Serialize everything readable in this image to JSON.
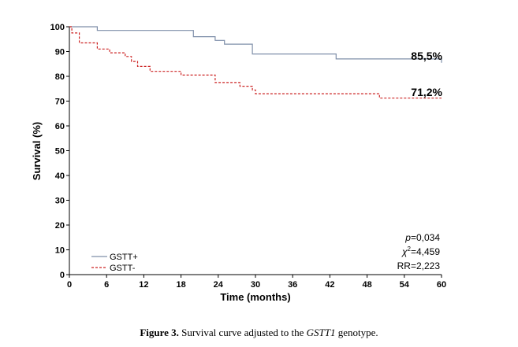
{
  "chart_data": {
    "type": "line",
    "step": true,
    "xlabel": "Time (months)",
    "ylabel": "Survival (%)",
    "xlim": [
      0,
      60
    ],
    "ylim": [
      0,
      100
    ],
    "xticks": [
      "0",
      "6",
      "12",
      "18",
      "24",
      "30",
      "36",
      "42",
      "48",
      "54",
      "60"
    ],
    "yticks": [
      "0",
      "10",
      "20",
      "30",
      "40",
      "50",
      "60",
      "70",
      "80",
      "90",
      "100"
    ],
    "grid": false,
    "legend": "bottom-left",
    "series": [
      {
        "name": "GSTT+",
        "color": "#7f8fa9",
        "style": "solid",
        "end_label": "85,5%",
        "x": [
          0,
          4.5,
          20,
          23.5,
          25,
          29.5,
          43,
          60
        ],
        "y": [
          100,
          98.5,
          96,
          94.5,
          93,
          89,
          87,
          85.5
        ]
      },
      {
        "name": "GSTT-",
        "color": "#cc2222",
        "style": "dashed",
        "end_label": "71,2%",
        "x": [
          0,
          0.4,
          1.6,
          4.5,
          6.5,
          9,
          10,
          11,
          13,
          15.5,
          18,
          23.5,
          27.5,
          29.5,
          30,
          50,
          60
        ],
        "y": [
          100,
          97.5,
          93.5,
          91,
          89.5,
          88,
          86,
          84,
          82,
          82,
          80.5,
          77.5,
          76,
          74.5,
          73,
          71.2,
          71.2
        ]
      }
    ],
    "annotations": {
      "p_label": "p",
      "p_value": "=0,034",
      "chi_symbol": "χ",
      "chi_sup": "2",
      "chi_value": "=4,459",
      "rr": "RR=2,223"
    }
  },
  "caption": {
    "label": "Figure 3.",
    "text_before": " Survival curve adjusted to the ",
    "gene": "GSTT1",
    "text_after": " genotype."
  }
}
